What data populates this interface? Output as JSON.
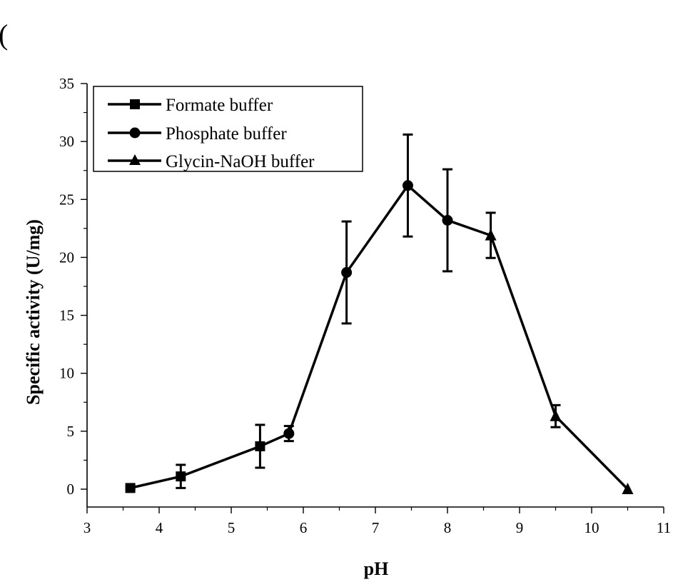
{
  "chart_data": {
    "type": "line",
    "title": "",
    "corner_mark": "(",
    "xlabel": "pH",
    "ylabel": "Specific activity (U/mg)",
    "xlim": [
      3,
      11
    ],
    "ylim": [
      -1.5,
      35
    ],
    "x_ticks": [
      3,
      4,
      5,
      6,
      7,
      8,
      9,
      10,
      11
    ],
    "y_ticks": [
      0,
      5,
      10,
      15,
      20,
      25,
      30,
      35
    ],
    "grid": false,
    "legend_position": "top-left",
    "line_color": "#000000",
    "series": [
      {
        "name": "Formate buffer",
        "marker": "square",
        "points": [
          {
            "x": 3.6,
            "y": 0.1,
            "err": 0.15
          },
          {
            "x": 4.3,
            "y": 1.1,
            "err": 1.0
          },
          {
            "x": 5.4,
            "y": 3.7,
            "err": 1.85
          }
        ]
      },
      {
        "name": "Phosphate buffer",
        "marker": "circle",
        "points": [
          {
            "x": 5.8,
            "y": 4.8,
            "err": 0.65
          },
          {
            "x": 6.6,
            "y": 18.7,
            "err": 4.4
          },
          {
            "x": 7.45,
            "y": 26.2,
            "err": 4.4
          },
          {
            "x": 8.0,
            "y": 23.2,
            "err": 4.4
          }
        ]
      },
      {
        "name": "Glycin-NaOH buffer",
        "marker": "triangle",
        "points": [
          {
            "x": 8.6,
            "y": 21.9,
            "err": 1.95
          },
          {
            "x": 9.5,
            "y": 6.3,
            "err": 0.95
          },
          {
            "x": 10.5,
            "y": 0.0,
            "err": 0
          }
        ]
      }
    ]
  }
}
